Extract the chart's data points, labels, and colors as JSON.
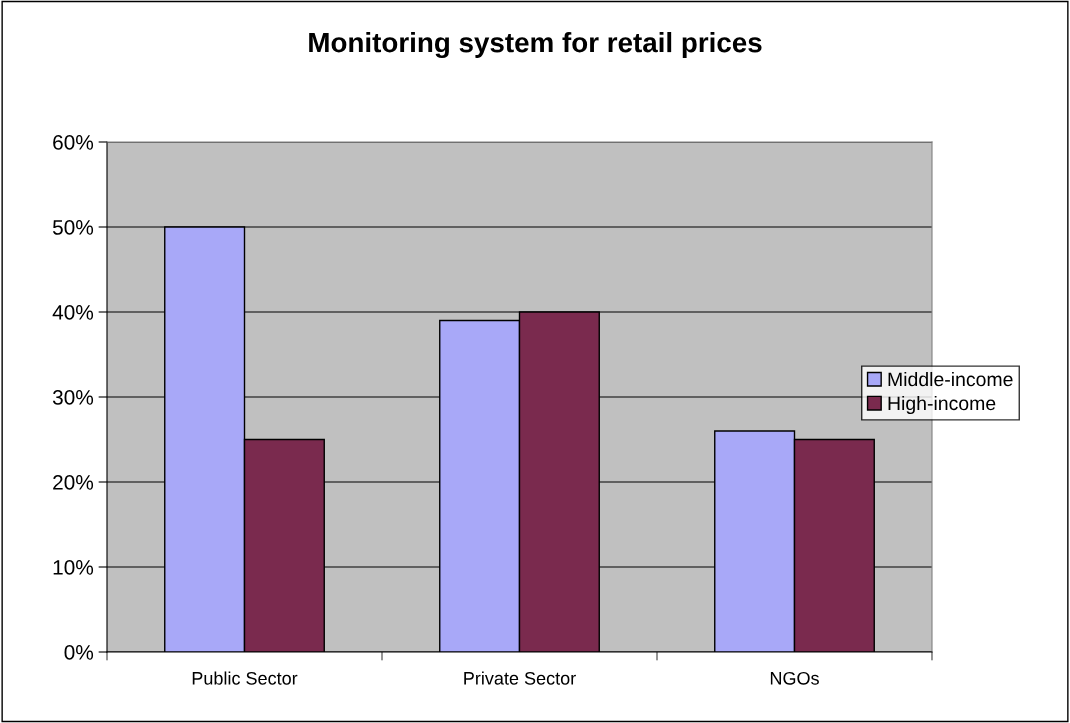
{
  "chart_data": {
    "type": "bar",
    "title": "Monitoring system for retail prices",
    "categories": [
      "Public Sector",
      "Private Sector",
      "NGOs"
    ],
    "series": [
      {
        "name": "Middle-income",
        "color": "#a8a8f8",
        "values": [
          50,
          39,
          26
        ]
      },
      {
        "name": "High-income",
        "color": "#7a2a4e",
        "values": [
          25,
          40,
          25
        ]
      }
    ],
    "ylim": [
      0,
      60
    ],
    "yticks": [
      {
        "value": 0,
        "label": "0%"
      },
      {
        "value": 10,
        "label": "10%"
      },
      {
        "value": 20,
        "label": "20%"
      },
      {
        "value": 30,
        "label": "30%"
      },
      {
        "value": 40,
        "label": "40%"
      },
      {
        "value": 50,
        "label": "50%"
      },
      {
        "value": 60,
        "label": "60%"
      }
    ],
    "grid": "y",
    "legend": "right"
  }
}
